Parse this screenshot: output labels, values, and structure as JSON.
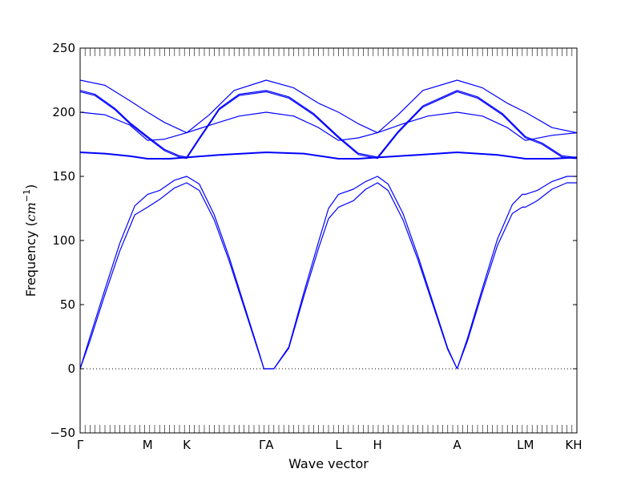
{
  "chart_data": {
    "type": "line",
    "xlabel": "Wave vector",
    "ylabel_text": "Frequency (",
    "ylabel_unit": "cm",
    "ylabel_exp": "−1",
    "ylabel_close": ")",
    "ylim": [
      -50,
      250
    ],
    "y_ticks": [
      -50,
      0,
      50,
      100,
      150,
      200,
      250
    ],
    "x_ticks": [
      {
        "label": "Γ",
        "x": 0
      },
      {
        "label": "M",
        "x": 0.1359
      },
      {
        "label": "K",
        "x": 0.2145
      },
      {
        "label": "ΓA",
        "x": 0.3746
      },
      {
        "label": "L",
        "x": 0.5202
      },
      {
        "label": "H",
        "x": 0.5987
      },
      {
        "label": "A",
        "x": 0.7589
      },
      {
        "label": "LM",
        "x": 0.8964
      },
      {
        "label": "KH",
        "x": 0.9935
      }
    ],
    "x_domain": [
      0,
      1
    ],
    "zero_line": true,
    "line_color": "#0000ff",
    "series": [
      {
        "x": [
          0,
          0.02,
          0.05,
          0.08,
          0.11,
          0.1359,
          0.16,
          0.19,
          0.2145,
          0.24,
          0.27,
          0.3,
          0.33,
          0.36,
          0.37,
          0.38,
          0.39,
          0.42,
          0.45,
          0.48,
          0.5,
          0.5202,
          0.55,
          0.575,
          0.5987,
          0.62,
          0.65,
          0.68,
          0.71,
          0.74,
          0.7589,
          0.78,
          0.81,
          0.84,
          0.87,
          0.89,
          0.8964,
          0.92,
          0.95,
          0.98,
          0.9935,
          1.0
        ],
        "y": [
          0,
          22,
          58,
          92,
          120,
          126,
          132,
          141,
          145,
          139,
          116,
          84,
          48,
          12,
          0,
          0,
          0,
          16,
          56,
          94,
          117,
          126,
          131,
          140,
          145,
          139,
          116,
          85,
          50,
          15,
          0,
          22,
          60,
          96,
          121,
          126,
          126,
          131,
          140,
          145,
          145,
          145
        ]
      },
      {
        "x": [
          0,
          0.02,
          0.05,
          0.08,
          0.11,
          0.1359,
          0.16,
          0.19,
          0.2145,
          0.24,
          0.27,
          0.3,
          0.33,
          0.36,
          0.37,
          0.38,
          0.39,
          0.42,
          0.45,
          0.48,
          0.5,
          0.5202,
          0.55,
          0.575,
          0.5987,
          0.62,
          0.65,
          0.68,
          0.71,
          0.74,
          0.7589,
          0.78,
          0.81,
          0.84,
          0.87,
          0.89,
          0.8964,
          0.92,
          0.95,
          0.98,
          0.9935,
          1.0
        ],
        "y": [
          0,
          25,
          62,
          98,
          127,
          136,
          139,
          147,
          150,
          144,
          120,
          87,
          50,
          13,
          0,
          0,
          0,
          17,
          59,
          99,
          125,
          136,
          140,
          146,
          150,
          144,
          121,
          88,
          52,
          16,
          0,
          24,
          63,
          101,
          128,
          136,
          136,
          139,
          146,
          150,
          150,
          150
        ]
      },
      {
        "x": [
          0,
          0.05,
          0.1,
          0.1359,
          0.18,
          0.2145,
          0.28,
          0.3746,
          0.45,
          0.5202,
          0.56,
          0.5987,
          0.68,
          0.7589,
          0.84,
          0.8964,
          0.95,
          1.0
        ],
        "y": [
          169,
          168,
          166,
          164,
          164,
          165,
          167,
          169,
          168,
          164,
          164,
          165,
          167,
          169,
          167,
          164,
          164,
          165
        ]
      },
      {
        "x": [
          0,
          0.05,
          0.1,
          0.1359,
          0.18,
          0.2145,
          0.28,
          0.3746,
          0.45,
          0.5202,
          0.56,
          0.5987,
          0.68,
          0.7589,
          0.84,
          0.8964,
          0.95,
          1.0
        ],
        "y": [
          168.5,
          167.5,
          165.5,
          163.5,
          163.5,
          164.5,
          166.5,
          168.5,
          167.5,
          163.5,
          163.5,
          164.5,
          166.5,
          168.5,
          166.5,
          163.5,
          163.5,
          164.5
        ]
      },
      {
        "x": [
          0,
          0.03,
          0.07,
          0.1,
          0.1359,
          0.17,
          0.2,
          0.2145,
          0.24,
          0.28,
          0.32,
          0.3746,
          0.42,
          0.47,
          0.5202,
          0.56,
          0.5987,
          0.64,
          0.69,
          0.7589,
          0.8,
          0.85,
          0.8964,
          0.93,
          0.97,
          0.9935,
          1.0
        ],
        "y": [
          217,
          214,
          203,
          192,
          181,
          171,
          166,
          165,
          180,
          203,
          214,
          217,
          212,
          199,
          181,
          168,
          165,
          185,
          205,
          217,
          212,
          199,
          181,
          176,
          166,
          165,
          165
        ]
      },
      {
        "x": [
          0,
          0.03,
          0.07,
          0.1,
          0.1359,
          0.17,
          0.2,
          0.2145,
          0.24,
          0.28,
          0.32,
          0.3746,
          0.42,
          0.47,
          0.5202,
          0.56,
          0.5987,
          0.64,
          0.69,
          0.7589,
          0.8,
          0.85,
          0.8964,
          0.93,
          0.97,
          0.9935,
          1.0
        ],
        "y": [
          216,
          213,
          202,
          191,
          180,
          170,
          165,
          164,
          179,
          202,
          213,
          216,
          211,
          198,
          180,
          167,
          164,
          184,
          204,
          216,
          211,
          198,
          180,
          175,
          165,
          164,
          164
        ]
      },
      {
        "x": [
          0,
          0.05,
          0.1,
          0.1359,
          0.17,
          0.2145,
          0.27,
          0.32,
          0.3746,
          0.43,
          0.48,
          0.5202,
          0.56,
          0.5987,
          0.65,
          0.7,
          0.7589,
          0.81,
          0.86,
          0.8964,
          0.95,
          1.0
        ],
        "y": [
          200,
          198,
          190,
          178,
          179,
          184,
          191,
          197,
          200,
          197,
          188,
          178,
          180,
          184,
          191,
          197,
          200,
          197,
          188,
          178,
          182,
          184
        ]
      },
      {
        "x": [
          0,
          0.05,
          0.1,
          0.1359,
          0.17,
          0.2145,
          0.26,
          0.31,
          0.3746,
          0.43,
          0.48,
          0.5202,
          0.56,
          0.5987,
          0.64,
          0.69,
          0.7589,
          0.81,
          0.86,
          0.8964,
          0.95,
          1.0
        ],
        "y": [
          225,
          221,
          209,
          200,
          192,
          184,
          198,
          217,
          225,
          219,
          207,
          200,
          191,
          184,
          198,
          217,
          225,
          219,
          207,
          200,
          188,
          184
        ]
      }
    ]
  }
}
